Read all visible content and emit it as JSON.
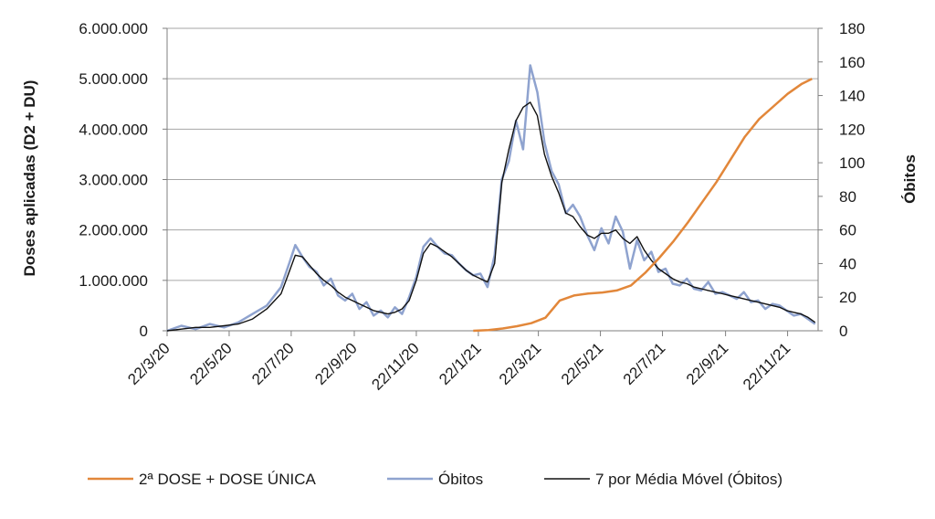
{
  "chart_data": {
    "type": "line",
    "title": "",
    "ylabel_left": "Doses aplicadas  (D2 + DU)",
    "ylabel_right": "Óbitos",
    "ylim_left": [
      0,
      6000000
    ],
    "ylim_right": [
      0,
      180
    ],
    "xlim": [
      "2020-03-22",
      "2021-12-22"
    ],
    "left_ticks": [
      "0",
      "1.000.000",
      "2.000.000",
      "3.000.000",
      "4.000.000",
      "5.000.000",
      "6.000.000"
    ],
    "right_ticks": [
      "0",
      "20",
      "40",
      "60",
      "80",
      "100",
      "120",
      "140",
      "160",
      "180"
    ],
    "x_tick_labels": [
      "22/3/20",
      "22/5/20",
      "22/7/20",
      "22/9/20",
      "22/11/20",
      "22/1/21",
      "22/3/21",
      "22/5/21",
      "22/7/21",
      "22/9/21",
      "22/11/21"
    ],
    "x_tick_dates": [
      "2020-03-22",
      "2020-05-22",
      "2020-07-22",
      "2020-09-22",
      "2020-11-22",
      "2021-01-22",
      "2021-03-22",
      "2021-05-22",
      "2021-07-22",
      "2021-09-22",
      "2021-11-22"
    ],
    "grid": true,
    "legend_position": "bottom",
    "colors": {
      "doses": "#e2873a",
      "obitos": "#8fa3cf",
      "media_movel": "#111111",
      "grid": "#a6a6a6",
      "axis": "#7f7f7f"
    },
    "series": [
      {
        "name": "2ª DOSE + DOSE ÚNICA",
        "axis": "left",
        "x": [
          "2021-01-17",
          "2021-02-01",
          "2021-02-15",
          "2021-03-01",
          "2021-03-15",
          "2021-03-29",
          "2021-04-12",
          "2021-04-26",
          "2021-05-10",
          "2021-05-24",
          "2021-06-07",
          "2021-06-21",
          "2021-07-05",
          "2021-07-19",
          "2021-08-02",
          "2021-08-16",
          "2021-08-30",
          "2021-09-13",
          "2021-09-27",
          "2021-10-11",
          "2021-10-25",
          "2021-11-08",
          "2021-11-22",
          "2021-12-06",
          "2021-12-16"
        ],
        "values": [
          0,
          12000,
          45000,
          90000,
          150000,
          260000,
          600000,
          700000,
          740000,
          760000,
          800000,
          900000,
          1150000,
          1450000,
          1780000,
          2150000,
          2550000,
          2950000,
          3400000,
          3850000,
          4200000,
          4450000,
          4700000,
          4900000,
          5000000
        ]
      },
      {
        "name": "Óbitos",
        "axis": "right",
        "x": [
          "2020-03-22",
          "2020-04-05",
          "2020-04-19",
          "2020-05-03",
          "2020-05-17",
          "2020-05-31",
          "2020-06-14",
          "2020-06-28",
          "2020-07-12",
          "2020-07-20",
          "2020-07-26",
          "2020-08-02",
          "2020-08-09",
          "2020-08-16",
          "2020-08-23",
          "2020-08-30",
          "2020-09-06",
          "2020-09-13",
          "2020-09-20",
          "2020-09-27",
          "2020-10-04",
          "2020-10-11",
          "2020-10-18",
          "2020-10-25",
          "2020-11-01",
          "2020-11-08",
          "2020-11-15",
          "2020-11-22",
          "2020-11-29",
          "2020-12-06",
          "2020-12-13",
          "2020-12-20",
          "2020-12-27",
          "2021-01-03",
          "2021-01-10",
          "2021-01-17",
          "2021-01-24",
          "2021-01-31",
          "2021-02-07",
          "2021-02-14",
          "2021-02-21",
          "2021-02-28",
          "2021-03-07",
          "2021-03-14",
          "2021-03-21",
          "2021-03-28",
          "2021-04-04",
          "2021-04-11",
          "2021-04-18",
          "2021-04-25",
          "2021-05-02",
          "2021-05-09",
          "2021-05-16",
          "2021-05-23",
          "2021-05-30",
          "2021-06-06",
          "2021-06-13",
          "2021-06-20",
          "2021-06-27",
          "2021-07-04",
          "2021-07-11",
          "2021-07-18",
          "2021-07-25",
          "2021-08-01",
          "2021-08-08",
          "2021-08-15",
          "2021-08-22",
          "2021-08-29",
          "2021-09-05",
          "2021-09-12",
          "2021-09-19",
          "2021-09-26",
          "2021-10-03",
          "2021-10-10",
          "2021-10-17",
          "2021-10-24",
          "2021-10-31",
          "2021-11-07",
          "2021-11-14",
          "2021-11-21",
          "2021-11-28",
          "2021-12-05",
          "2021-12-12",
          "2021-12-19"
        ],
        "values": [
          0,
          3,
          1,
          4,
          2,
          5,
          10,
          15,
          26,
          40,
          51,
          44,
          38,
          35,
          27,
          31,
          21,
          18,
          22,
          13,
          17,
          9,
          12,
          8,
          14,
          10,
          20,
          32,
          50,
          55,
          50,
          46,
          45,
          40,
          36,
          33,
          34,
          26,
          45,
          90,
          101,
          125,
          108,
          158,
          142,
          112,
          95,
          87,
          70,
          75,
          68,
          57,
          48,
          61,
          52,
          68,
          59,
          37,
          54,
          42,
          47,
          35,
          37,
          28,
          27,
          31,
          25,
          24,
          29,
          22,
          23,
          21,
          19,
          23,
          17,
          18,
          13,
          16,
          15,
          12,
          9,
          10,
          7,
          4
        ]
      },
      {
        "name": "7 por Média Móvel (Óbitos)",
        "axis": "right",
        "x": [
          "2020-03-22",
          "2020-04-05",
          "2020-04-19",
          "2020-05-03",
          "2020-05-17",
          "2020-05-31",
          "2020-06-14",
          "2020-06-28",
          "2020-07-12",
          "2020-07-20",
          "2020-07-26",
          "2020-08-02",
          "2020-08-09",
          "2020-08-16",
          "2020-08-23",
          "2020-08-30",
          "2020-09-06",
          "2020-09-13",
          "2020-09-20",
          "2020-09-27",
          "2020-10-04",
          "2020-10-11",
          "2020-10-18",
          "2020-10-25",
          "2020-11-01",
          "2020-11-08",
          "2020-11-15",
          "2020-11-22",
          "2020-11-29",
          "2020-12-06",
          "2020-12-13",
          "2020-12-20",
          "2020-12-27",
          "2021-01-03",
          "2021-01-10",
          "2021-01-17",
          "2021-01-24",
          "2021-01-31",
          "2021-02-07",
          "2021-02-14",
          "2021-02-21",
          "2021-02-28",
          "2021-03-07",
          "2021-03-14",
          "2021-03-21",
          "2021-03-28",
          "2021-04-04",
          "2021-04-11",
          "2021-04-18",
          "2021-04-25",
          "2021-05-02",
          "2021-05-09",
          "2021-05-16",
          "2021-05-23",
          "2021-05-30",
          "2021-06-06",
          "2021-06-13",
          "2021-06-20",
          "2021-06-27",
          "2021-07-04",
          "2021-07-11",
          "2021-07-18",
          "2021-07-25",
          "2021-08-01",
          "2021-08-08",
          "2021-08-15",
          "2021-08-22",
          "2021-08-29",
          "2021-09-05",
          "2021-09-12",
          "2021-09-19",
          "2021-09-26",
          "2021-10-03",
          "2021-10-10",
          "2021-10-17",
          "2021-10-24",
          "2021-10-31",
          "2021-11-07",
          "2021-11-14",
          "2021-11-21",
          "2021-11-28",
          "2021-12-05",
          "2021-12-12",
          "2021-12-19"
        ],
        "values": [
          0,
          1,
          2,
          2,
          3,
          4,
          7,
          13,
          22,
          35,
          45,
          44,
          39,
          34,
          30,
          27,
          23,
          20,
          18,
          16,
          14,
          12,
          11,
          10,
          11,
          13,
          18,
          30,
          46,
          52,
          50,
          47,
          44,
          40,
          36,
          33,
          31,
          29,
          40,
          88,
          108,
          125,
          133,
          136,
          128,
          105,
          92,
          82,
          70,
          68,
          62,
          57,
          55,
          58,
          58,
          60,
          55,
          52,
          56,
          48,
          42,
          37,
          34,
          31,
          29,
          28,
          26,
          25,
          24,
          23,
          22,
          21,
          20,
          19,
          18,
          17,
          16,
          15,
          14,
          12,
          11,
          10,
          8,
          5
        ]
      }
    ]
  }
}
